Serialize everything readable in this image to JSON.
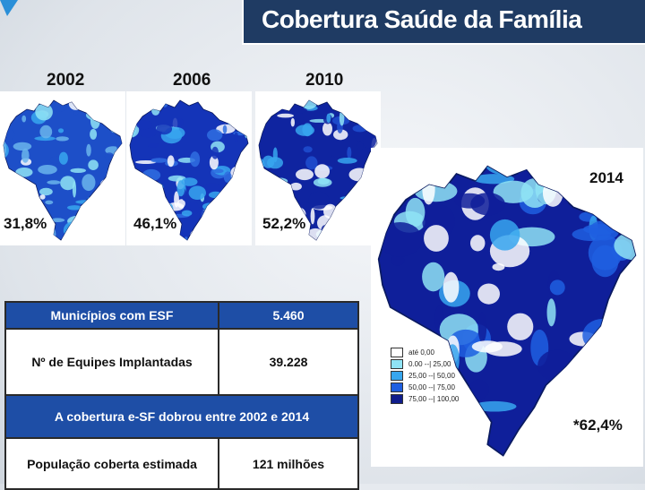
{
  "title": "Cobertura Saúde da Família",
  "maps": [
    {
      "year": "2002",
      "coverage": "31,8%",
      "shade": "#6ab4ec",
      "dark": "#1d4fc8"
    },
    {
      "year": "2006",
      "coverage": "46,1%",
      "shade": "#2f6fe0",
      "dark": "#1434b8"
    },
    {
      "year": "2010",
      "coverage": "52,2%",
      "shade": "#1f4fd0",
      "dark": "#0f24a0"
    }
  ],
  "main_map": {
    "year": "2014",
    "coverage": "*62,4%"
  },
  "legend": {
    "items": [
      {
        "label": "até 0,00",
        "color": "#ffffff"
      },
      {
        "label": "0.00 --| 25,00",
        "color": "#8fe3f5"
      },
      {
        "label": "25,00 --| 50,00",
        "color": "#37a6ee"
      },
      {
        "label": "50,00 --| 75,00",
        "color": "#1f5fe0"
      },
      {
        "label": "75,00 --| 100,00",
        "color": "#101d8c"
      }
    ]
  },
  "table": {
    "row1": {
      "label": "Municípios com ESF",
      "value": "5.460"
    },
    "row2": {
      "label": "Nº de Equipes Implantadas",
      "value": "39.228"
    },
    "banner": "A cobertura e-SF dobrou entre 2002 e 2014",
    "row4": {
      "label": "População coberta estimada",
      "value": "121 milhões"
    }
  }
}
